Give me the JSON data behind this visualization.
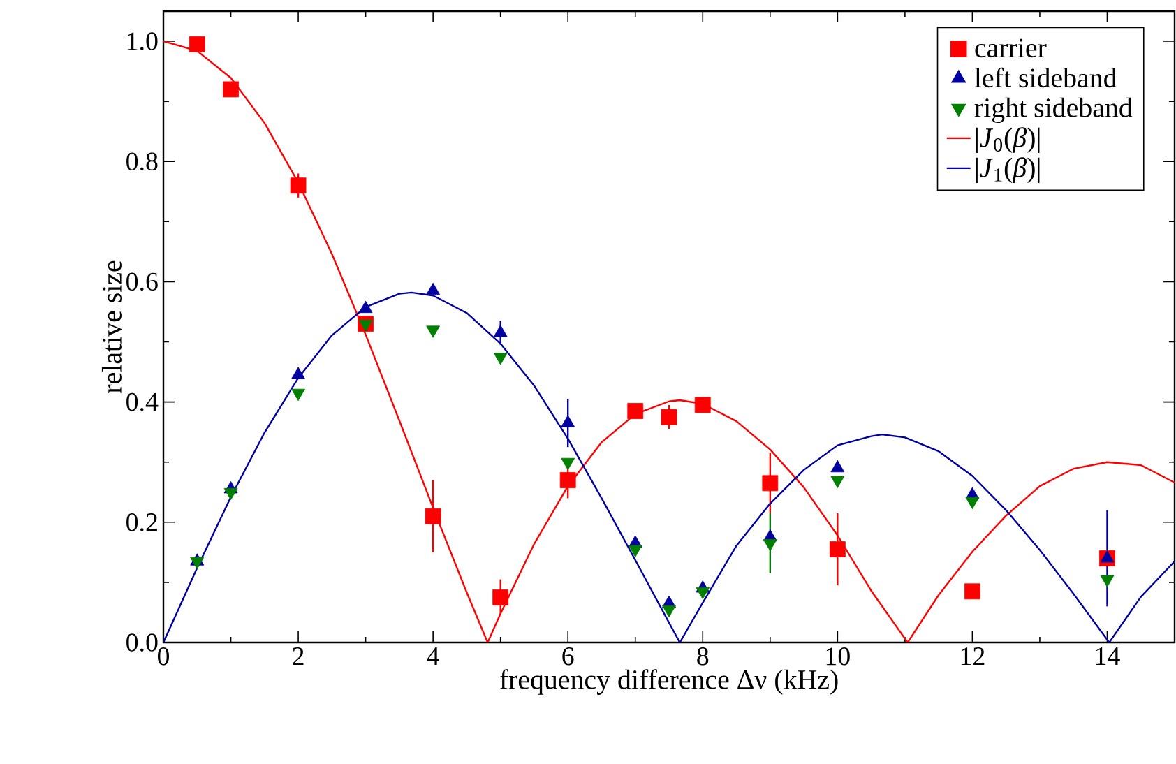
{
  "chart_data": {
    "type": "scatter",
    "xlabel": "frequency difference Δν (kHz)",
    "ylabel": "relative size",
    "xlim": [
      0,
      15
    ],
    "ylim": [
      0,
      1.05
    ],
    "xticks": [
      0,
      2,
      4,
      6,
      8,
      10,
      12,
      14
    ],
    "yticks": [
      {
        "value": 0,
        "label": "0.0"
      },
      {
        "value": 0.2,
        "label": "0.2"
      },
      {
        "value": 0.4,
        "label": "0.4"
      },
      {
        "value": 0.6,
        "label": "0.6"
      },
      {
        "value": 0.8,
        "label": "0.8"
      },
      {
        "value": 1.0,
        "label": "1.0"
      }
    ],
    "grid": false,
    "legend": "top right",
    "series": [
      {
        "name": "carrier",
        "marker": "square",
        "color": "#ff0000",
        "x": [
          0.5,
          1,
          2,
          3,
          4,
          5,
          6,
          7,
          7.5,
          8,
          9,
          10,
          12,
          14
        ],
        "values": [
          0.995,
          0.92,
          0.76,
          0.53,
          0.21,
          0.075,
          0.27,
          0.385,
          0.375,
          0.395,
          0.265,
          0.155,
          0.085,
          0.14
        ],
        "errors": [
          null,
          null,
          0.02,
          null,
          0.06,
          0.03,
          0.03,
          null,
          0.02,
          null,
          0.05,
          0.06,
          null,
          null
        ]
      },
      {
        "name": "left sideband",
        "marker": "triangle",
        "color": "#0000a0",
        "x": [
          0.5,
          1,
          2,
          3,
          4,
          5,
          6,
          7,
          7.5,
          8,
          9,
          10,
          12,
          14
        ],
        "values": [
          0.135,
          0.255,
          0.445,
          0.555,
          0.585,
          0.515,
          0.365,
          0.165,
          0.065,
          0.09,
          0.175,
          0.29,
          0.245,
          0.14
        ],
        "errors": [
          null,
          null,
          null,
          null,
          null,
          0.02,
          0.04,
          null,
          null,
          null,
          null,
          null,
          null,
          0.08
        ]
      },
      {
        "name": "right sideband",
        "marker": "triangle-down",
        "color": "#007f00",
        "x": [
          0.5,
          1,
          2,
          3,
          4,
          5,
          6,
          7,
          7.5,
          8,
          9,
          10,
          12,
          14
        ],
        "values": [
          0.135,
          0.25,
          0.415,
          0.53,
          0.52,
          0.475,
          0.3,
          0.155,
          0.055,
          0.085,
          0.165,
          0.27,
          0.235,
          0.105
        ],
        "errors": [
          null,
          null,
          null,
          null,
          null,
          null,
          null,
          null,
          null,
          null,
          0.05,
          null,
          null,
          null
        ]
      },
      {
        "name": "|*J*$_{0}$(*β*)|",
        "type": "line",
        "marker": "none",
        "color": "#ff0000",
        "x": [
          0,
          0.5,
          1,
          1.5,
          2,
          2.5,
          3,
          3.5,
          4,
          4.5,
          4.81,
          5,
          5.5,
          6,
          6.5,
          7,
          7.5,
          7.66,
          8,
          8.5,
          9,
          9.5,
          10,
          10.5,
          11.04,
          11.5,
          12,
          12.5,
          13,
          13.5,
          14,
          14.5,
          15
        ],
        "values": [
          1.0,
          0.984,
          0.939,
          0.864,
          0.765,
          0.646,
          0.512,
          0.369,
          0.224,
          0.083,
          0.0,
          0.048,
          0.164,
          0.26,
          0.333,
          0.38,
          0.401,
          0.403,
          0.397,
          0.368,
          0.321,
          0.258,
          0.178,
          0.086,
          0.0,
          0.079,
          0.151,
          0.211,
          0.26,
          0.289,
          0.3,
          0.295,
          0.266
        ]
      },
      {
        "name": "|*J*$_{1}$(*β*)|",
        "type": "line",
        "marker": "none",
        "color": "#0000a0",
        "x": [
          0,
          0.5,
          1,
          1.5,
          2,
          2.5,
          3,
          3.5,
          3.68,
          4,
          4.5,
          5,
          5.5,
          6,
          6.5,
          7,
          7.5,
          7.66,
          8,
          8.5,
          9,
          9.5,
          10,
          10.5,
          10.66,
          11,
          11.5,
          12,
          12.5,
          13,
          13.5,
          14.03,
          14.5,
          15
        ],
        "values": [
          0.0,
          0.124,
          0.242,
          0.349,
          0.44,
          0.511,
          0.558,
          0.58,
          0.582,
          0.577,
          0.548,
          0.497,
          0.427,
          0.339,
          0.24,
          0.137,
          0.033,
          0.0,
          0.066,
          0.161,
          0.231,
          0.287,
          0.328,
          0.343,
          0.346,
          0.341,
          0.318,
          0.277,
          0.22,
          0.154,
          0.081,
          0.0,
          0.076,
          0.135
        ]
      }
    ]
  }
}
